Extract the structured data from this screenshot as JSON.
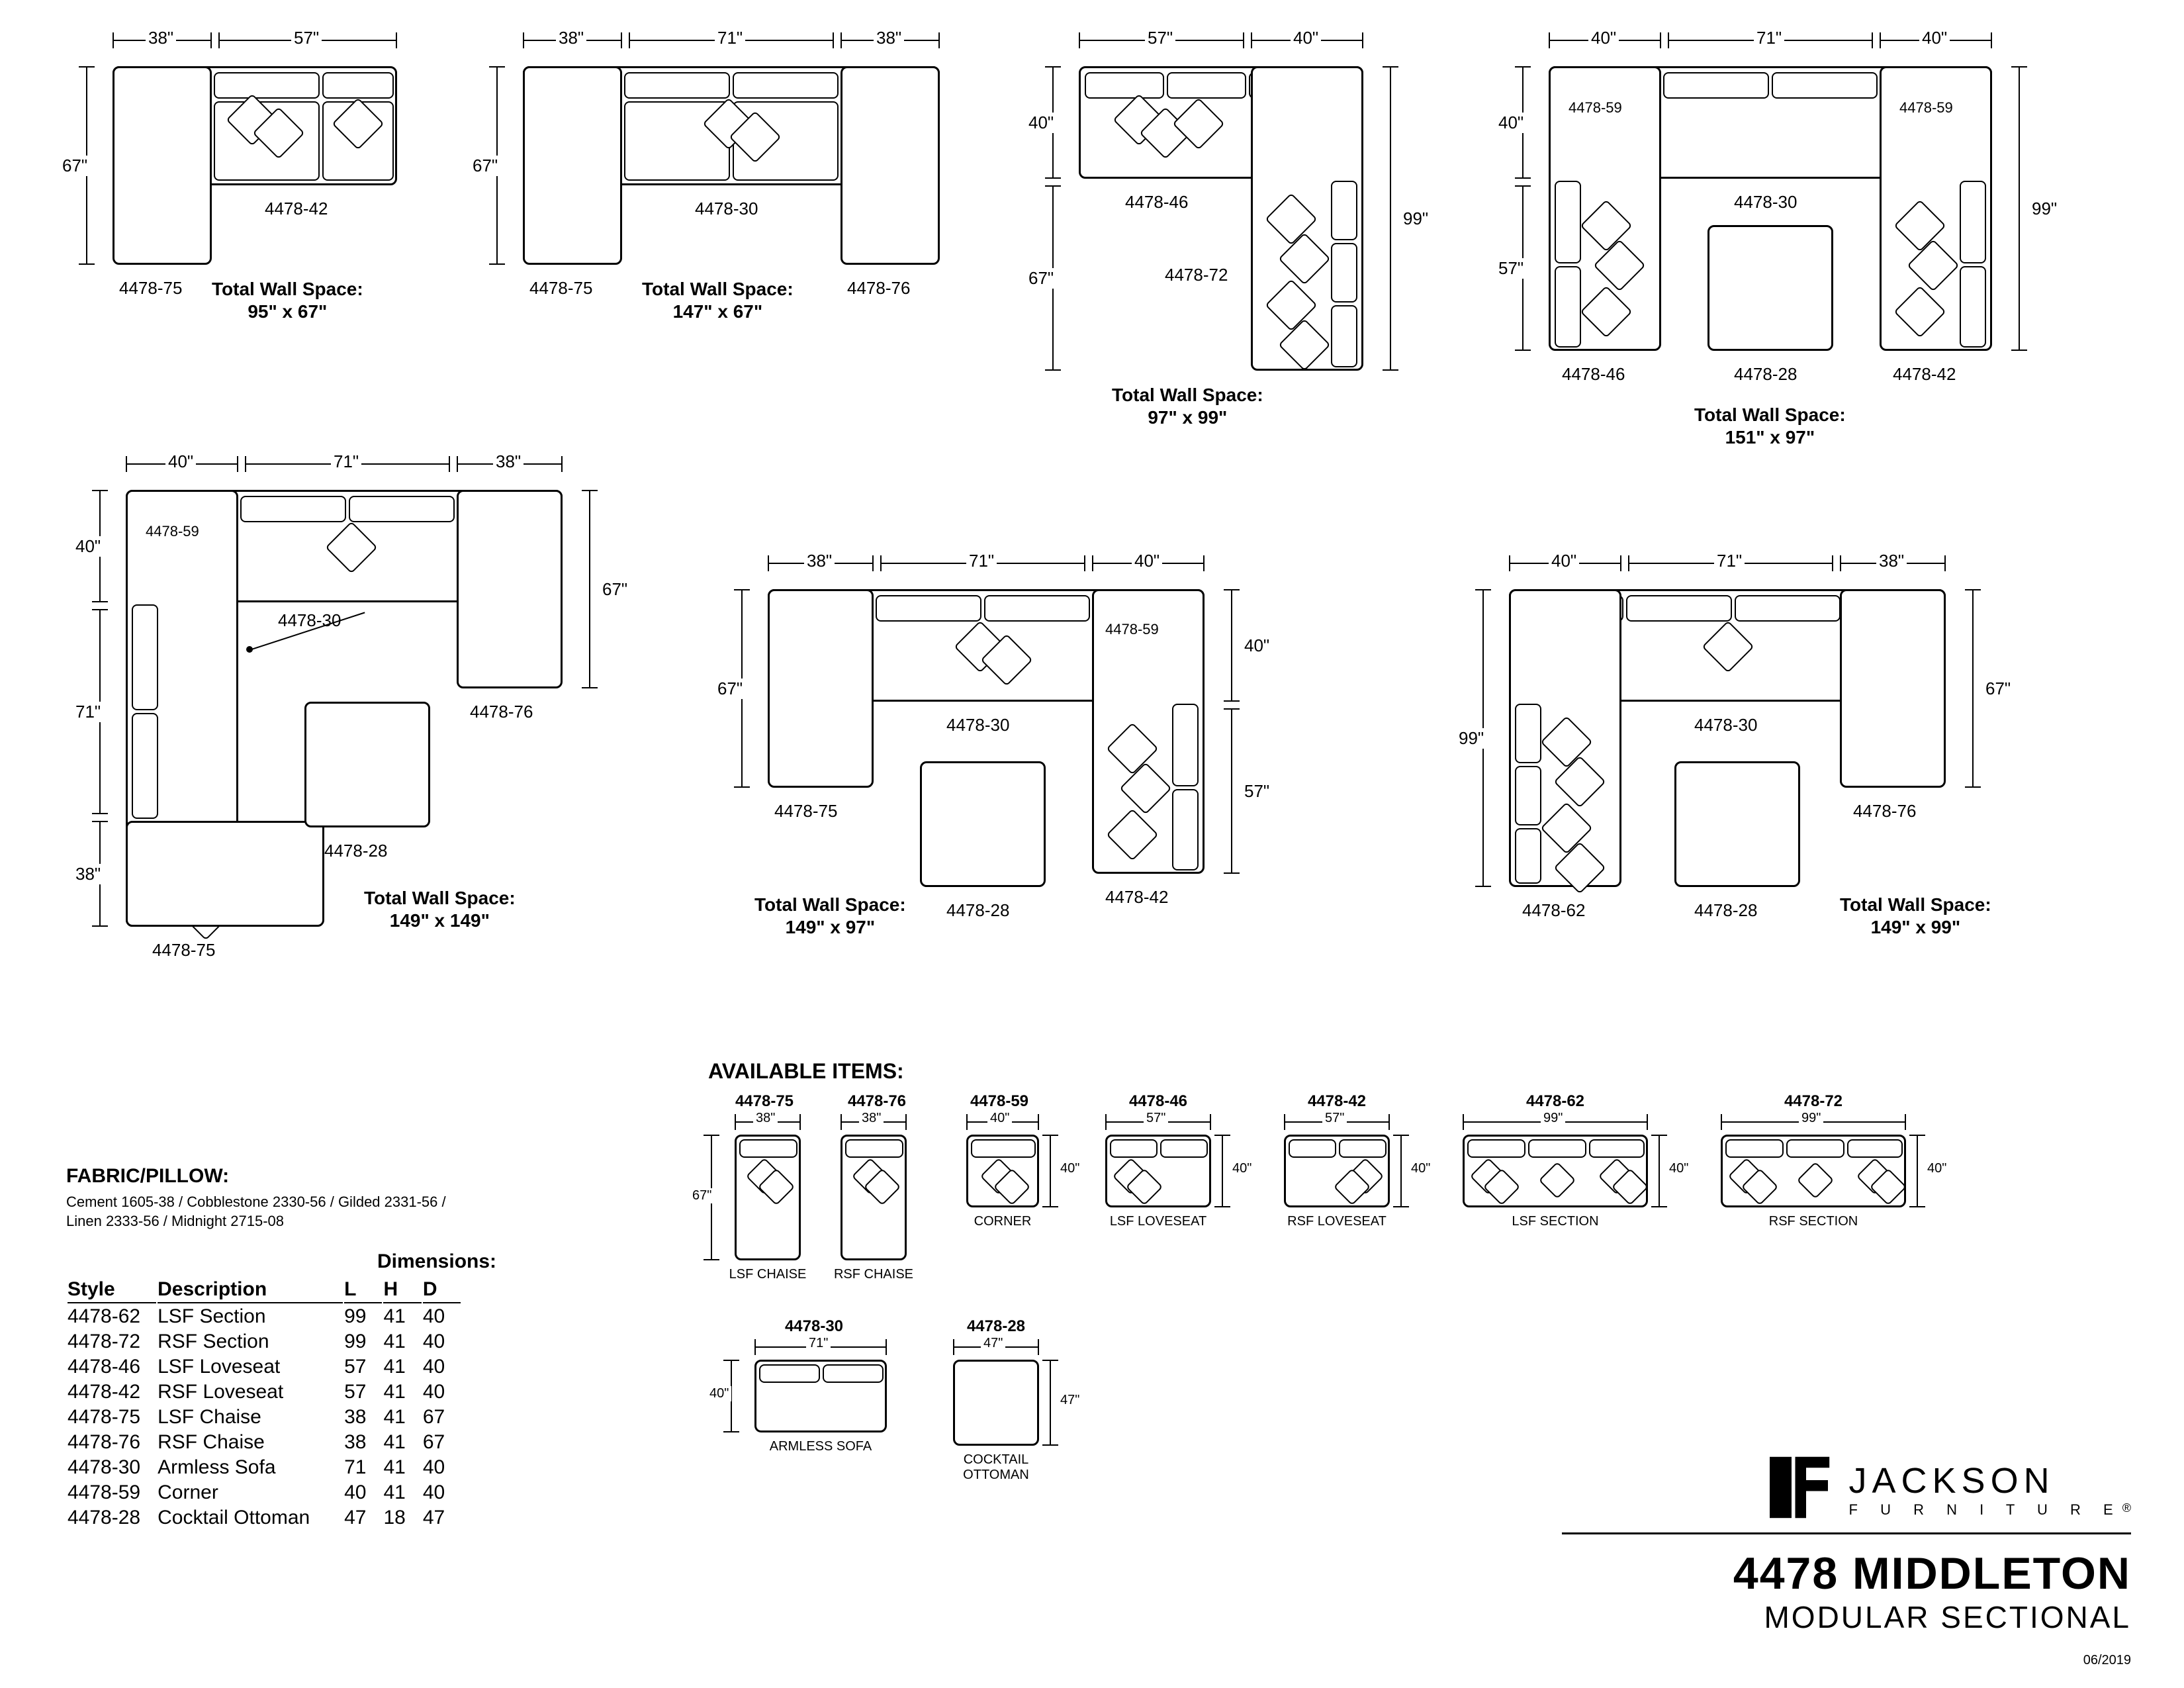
{
  "configs": [
    {
      "id": "c1",
      "dims_top": [
        "38\"",
        "57\""
      ],
      "dims_left": [
        "67\""
      ],
      "parts": [
        "4478-75",
        "4478-42"
      ],
      "total": "Total Wall Space:\n95\" x 67\""
    },
    {
      "id": "c2",
      "dims_top": [
        "38\"",
        "71\"",
        "38\""
      ],
      "dims_left": [
        "67\""
      ],
      "parts": [
        "4478-75",
        "4478-30",
        "4478-76"
      ],
      "total": "Total Wall Space:\n147\" x 67\""
    },
    {
      "id": "c3",
      "dims_top": [
        "57\"",
        "40\""
      ],
      "dims_left": [
        "40\"",
        "67\""
      ],
      "dims_right": [
        "99\""
      ],
      "parts": [
        "4478-46",
        "4478-72"
      ],
      "total": "Total Wall Space:\n97\" x 99\""
    },
    {
      "id": "c4",
      "dims_top": [
        "40\"",
        "71\"",
        "40\""
      ],
      "dims_left": [
        "40\"",
        "57\""
      ],
      "dims_right": [
        "99\""
      ],
      "parts": [
        "4478-59",
        "4478-30",
        "4478-59",
        "4478-46",
        "4478-28",
        "4478-42"
      ],
      "total": "Total Wall Space:\n151\" x 97\""
    },
    {
      "id": "c5",
      "dims_top": [
        "40\"",
        "71\"",
        "38\""
      ],
      "dims_left": [
        "40\"",
        "71\"",
        "38\""
      ],
      "dims_right": [
        "67\""
      ],
      "parts": [
        "4478-59",
        "4478-30",
        "4478-76",
        "4478-28",
        "4478-75"
      ],
      "total": "Total Wall Space:\n149\" x 149\""
    },
    {
      "id": "c6",
      "dims_top": [
        "38\"",
        "71\"",
        "40\""
      ],
      "dims_left": [
        "67\""
      ],
      "dims_right": [
        "40\"",
        "57\""
      ],
      "parts": [
        "4478-75",
        "4478-30",
        "4478-59",
        "4478-28",
        "4478-42"
      ],
      "total": "Total Wall Space:\n149\" x 97\""
    },
    {
      "id": "c7",
      "dims_top": [
        "40\"",
        "71\"",
        "38\""
      ],
      "dims_left": [
        "99\""
      ],
      "dims_right": [
        "67\""
      ],
      "parts": [
        "4478-30",
        "4478-76",
        "4478-62",
        "4478-28"
      ],
      "total": "Total Wall Space:\n149\" x 99\""
    }
  ],
  "available_title": "AVAILABLE ITEMS:",
  "available": [
    {
      "code": "4478-75",
      "dims": [
        "38\"",
        "67\""
      ],
      "name": "LSF CHAISE"
    },
    {
      "code": "4478-76",
      "dims": [
        "38\"",
        "67\""
      ],
      "name": "RSF CHAISE"
    },
    {
      "code": "4478-59",
      "dims": [
        "40\"",
        "40\""
      ],
      "name": "CORNER"
    },
    {
      "code": "4478-46",
      "dims": [
        "57\"",
        "40\""
      ],
      "name": "LSF LOVESEAT"
    },
    {
      "code": "4478-42",
      "dims": [
        "57\"",
        "40\""
      ],
      "name": "RSF LOVESEAT"
    },
    {
      "code": "4478-62",
      "dims": [
        "99\"",
        "40\""
      ],
      "name": "LSF SECTION"
    },
    {
      "code": "4478-72",
      "dims": [
        "99\"",
        "40\""
      ],
      "name": "RSF SECTION"
    },
    {
      "code": "4478-30",
      "dims": [
        "71\"",
        "40\""
      ],
      "name": "ARMLESS SOFA"
    },
    {
      "code": "4478-28",
      "dims": [
        "47\"",
        "47\""
      ],
      "name": "COCKTAIL OTTOMAN"
    }
  ],
  "fabric_label": "FABRIC/PILLOW:",
  "fabric_text": "Cement 1605-38 / Cobblestone 2330-56 / Gilded 2331-56 /\nLinen 2333-56 / Midnight 2715-08",
  "dims_heading": "Dimensions:",
  "table": {
    "headers": [
      "Style",
      "Description",
      "L",
      "H",
      "D"
    ],
    "rows": [
      [
        "4478-62",
        "LSF Section",
        "99",
        "41",
        "40"
      ],
      [
        "4478-72",
        "RSF Section",
        "99",
        "41",
        "40"
      ],
      [
        "4478-46",
        "LSF Loveseat",
        "57",
        "41",
        "40"
      ],
      [
        "4478-42",
        "RSF Loveseat",
        "57",
        "41",
        "40"
      ],
      [
        "4478-75",
        "LSF Chaise",
        "38",
        "41",
        "67"
      ],
      [
        "4478-76",
        "RSF Chaise",
        "38",
        "41",
        "67"
      ],
      [
        "4478-30",
        "Armless Sofa",
        "71",
        "41",
        "40"
      ],
      [
        "4478-59",
        "Corner",
        "40",
        "41",
        "40"
      ],
      [
        "4478-28",
        "Cocktail Ottoman",
        "47",
        "18",
        "47"
      ]
    ]
  },
  "brand": "JACKSON",
  "brand_sub": "F U R N I T U R E",
  "product": "4478 MIDDLETON",
  "product_sub": "MODULAR SECTIONAL",
  "date": "06/2019"
}
